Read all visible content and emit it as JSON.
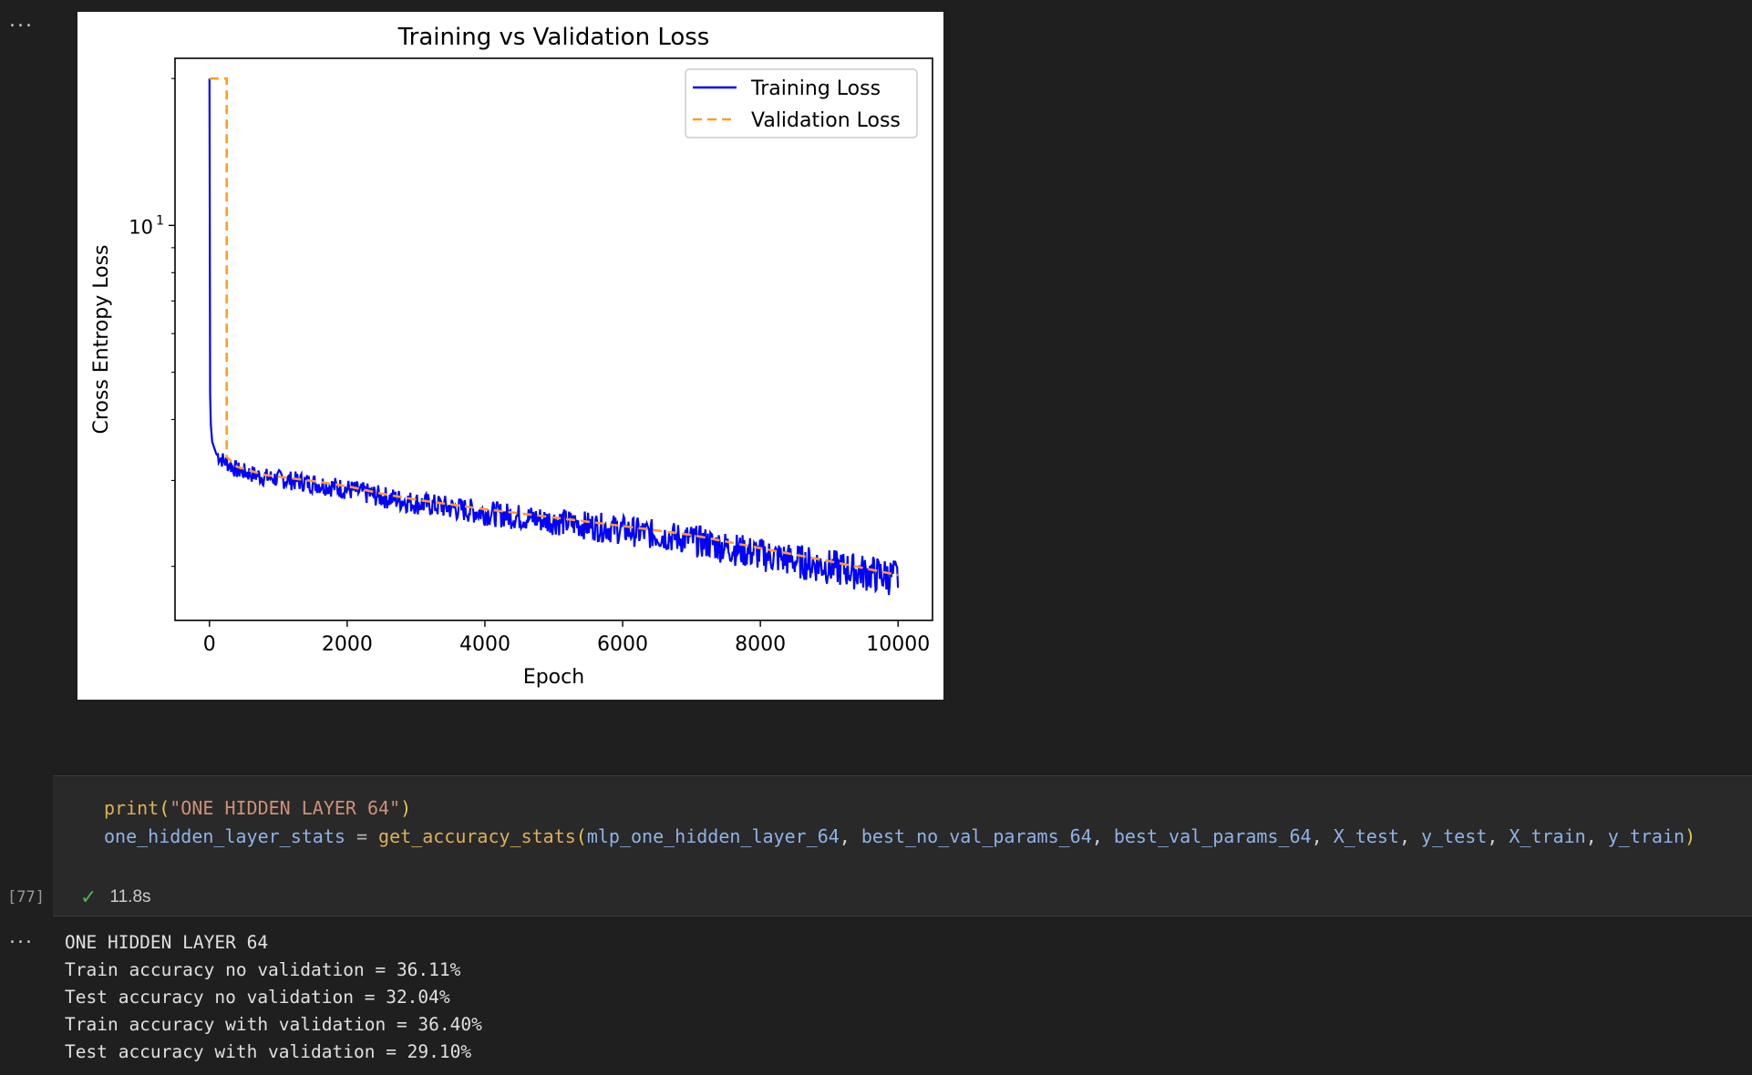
{
  "notebook": {
    "output_menu_label": "...",
    "chart_output_menu_label": "..."
  },
  "chart_data": {
    "type": "line",
    "title": "Training vs Validation Loss",
    "xlabel": "Epoch",
    "ylabel": "Cross Entropy Loss",
    "yscale": "log",
    "xlim": [
      -500,
      10500
    ],
    "ylim": [
      1.55,
      22
    ],
    "xticks": [
      0,
      2000,
      4000,
      6000,
      8000,
      10000
    ],
    "xtick_labels": [
      "0",
      "2000",
      "4000",
      "6000",
      "8000",
      "10000"
    ],
    "ytick_major_label": "10",
    "ytick_major_exp": "1",
    "yticks_minor": [
      2,
      3,
      4,
      5,
      6,
      7,
      8,
      9,
      20
    ],
    "grid": false,
    "legend_placement": "top-right",
    "series": [
      {
        "name": "Training Loss",
        "color": "#0000ff",
        "style": "solid",
        "x": [
          0,
          10,
          20,
          40,
          100,
          200,
          400,
          800,
          1200,
          1600,
          2000,
          2500,
          3000,
          4000,
          5000,
          6000,
          7000,
          8000,
          9000,
          10000
        ],
        "y": [
          20,
          4.5,
          3.9,
          3.6,
          3.4,
          3.3,
          3.15,
          3.05,
          3.0,
          2.95,
          2.88,
          2.78,
          2.7,
          2.58,
          2.48,
          2.38,
          2.27,
          2.12,
          2.0,
          1.9
        ]
      },
      {
        "name": "Validation Loss",
        "color": "#ff9f1c",
        "style": "dashed",
        "x": [
          0,
          250,
          250,
          400,
          800,
          1200,
          1600,
          2000,
          2500,
          3000,
          4000,
          5000,
          6000,
          7000,
          8000,
          9000,
          10000
        ],
        "y": [
          20,
          20,
          3.35,
          3.2,
          3.08,
          3.03,
          2.98,
          2.92,
          2.82,
          2.74,
          2.62,
          2.52,
          2.42,
          2.32,
          2.18,
          2.05,
          1.92
        ]
      }
    ]
  },
  "cell": {
    "execution_count": "[77]",
    "duration": "11.8s",
    "code_line1": {
      "fn": "print",
      "open": "(",
      "str": "\"ONE HIDDEN LAYER 64\"",
      "close": ")"
    },
    "code_line2": {
      "target": "one_hidden_layer_stats",
      "eq": " = ",
      "fn": "get_accuracy_stats",
      "open": "(",
      "args": [
        "mlp_one_hidden_layer_64",
        "best_no_val_params_64",
        "best_val_params_64",
        "X_test",
        "y_test",
        "X_train",
        "y_train"
      ],
      "sep": ", ",
      "close": ")"
    }
  },
  "output": {
    "lines": [
      "ONE HIDDEN LAYER 64",
      "Train accuracy no validation = 36.11%",
      "Test accuracy no validation = 32.04%",
      "Train accuracy with validation = 36.40%",
      "Test accuracy with validation = 29.10%"
    ]
  }
}
